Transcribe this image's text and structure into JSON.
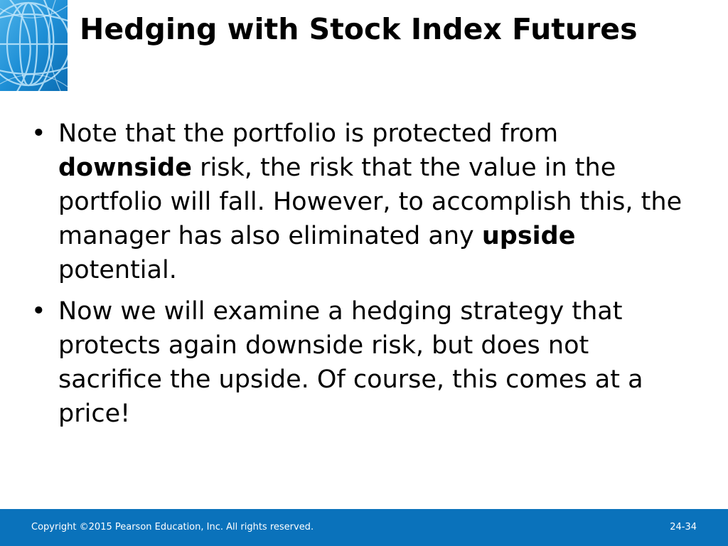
{
  "slide": {
    "title": "Hedging with Stock Index Futures",
    "bullets": [
      {
        "parts": [
          {
            "text": "Note that the portfolio is protected from ",
            "bold": false
          },
          {
            "text": "downside",
            "bold": true
          },
          {
            "text": " risk, the risk that the value in the portfolio will fall. However, to accomplish this, the manager has also eliminated any ",
            "bold": false
          },
          {
            "text": "upside",
            "bold": true
          },
          {
            "text": " potential.",
            "bold": false
          }
        ]
      },
      {
        "parts": [
          {
            "text": "Now we will examine a hedging strategy that protects again downside risk, but does not sacrifice the upside. Of course, this comes at a price!",
            "bold": false
          }
        ]
      }
    ],
    "bullet_symbol": "•"
  },
  "footer": {
    "copyright": "Copyright ©2015 Pearson Education, Inc. All rights reserved.",
    "slide_number": "24-34"
  },
  "colors": {
    "footer_bar": "#0a72bb",
    "logo_tile": "#1e8fd6"
  },
  "icons": {
    "logo": "globe-icon"
  }
}
